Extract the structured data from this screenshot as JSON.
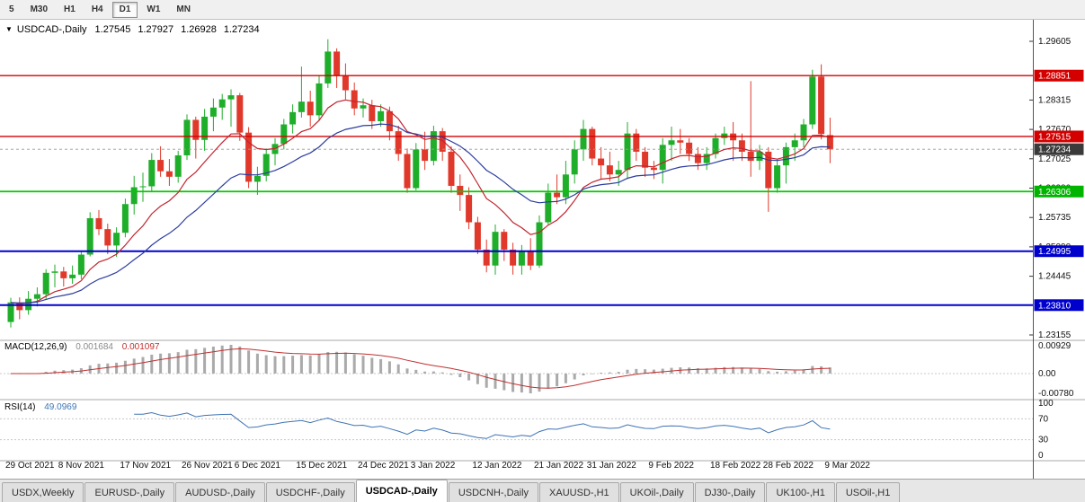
{
  "toolbar": {
    "timeframes": [
      {
        "label": "5",
        "active": false
      },
      {
        "label": "M30",
        "active": false
      },
      {
        "label": "H1",
        "active": false
      },
      {
        "label": "H4",
        "active": false
      },
      {
        "label": "D1",
        "active": true
      },
      {
        "label": "W1",
        "active": false
      },
      {
        "label": "MN",
        "active": false
      }
    ]
  },
  "chart_header": {
    "dropdown_icon": "▼",
    "symbol": "USDCAD-,Daily",
    "open": "1.27545",
    "high": "1.27927",
    "low": "1.26928",
    "close": "1.27234"
  },
  "price_axis": {
    "tick_labels": [
      "1.29605",
      "1.28315",
      "1.27670",
      "1.27025",
      "1.26380",
      "1.25735",
      "1.25090",
      "1.24445",
      "1.23155"
    ],
    "tick_values": [
      1.29605,
      1.28315,
      1.2767,
      1.27025,
      1.2638,
      1.25735,
      1.2509,
      1.24445,
      1.23155
    ],
    "badges": [
      {
        "label": "1.28851",
        "value": 1.28851,
        "color": "#d40000"
      },
      {
        "label": "1.27515",
        "value": 1.27515,
        "color": "#d40000"
      },
      {
        "label": "1.27234",
        "value": 1.27234,
        "color": "#3a3a3a"
      },
      {
        "label": "1.26306",
        "value": 1.26306,
        "color": "#00b400"
      },
      {
        "label": "1.24995",
        "value": 1.24995,
        "color": "#0000cd"
      },
      {
        "label": "1.23810",
        "value": 1.2381,
        "color": "#0000cd"
      }
    ]
  },
  "macd_panel": {
    "label": "MACD(12,26,9)",
    "value_main": "0.001684",
    "value_signal": "0.001097",
    "axis_labels": [
      "0.00929",
      "0.00",
      "-0.00780"
    ],
    "axis_values": [
      0.00929,
      0,
      -0.0078
    ]
  },
  "rsi_panel": {
    "label": "RSI(14)",
    "value": "49.0969",
    "axis_labels": [
      "100",
      "70",
      "30",
      "0"
    ],
    "axis_values": [
      100,
      70,
      30,
      0
    ],
    "guide_levels": [
      70,
      30
    ]
  },
  "x_axis_labels": [
    {
      "text": "29 Oct 2021",
      "i": 0
    },
    {
      "text": "8 Nov 2021",
      "i": 6
    },
    {
      "text": "17 Nov 2021",
      "i": 13
    },
    {
      "text": "26 Nov 2021",
      "i": 20
    },
    {
      "text": "6 Dec 2021",
      "i": 26
    },
    {
      "text": "15 Dec 2021",
      "i": 33
    },
    {
      "text": "24 Dec 2021",
      "i": 40
    },
    {
      "text": "3 Jan 2022",
      "i": 46
    },
    {
      "text": "12 Jan 2022",
      "i": 53
    },
    {
      "text": "21 Jan 2022",
      "i": 60
    },
    {
      "text": "31 Jan 2022",
      "i": 66
    },
    {
      "text": "9 Feb 2022",
      "i": 73
    },
    {
      "text": "18 Feb 2022",
      "i": 80
    },
    {
      "text": "28 Feb 2022",
      "i": 86
    },
    {
      "text": "9 Mar 2022",
      "i": 93
    }
  ],
  "tabs": [
    {
      "label": "USDX,Weekly",
      "active": false
    },
    {
      "label": "EURUSD-,Daily",
      "active": false
    },
    {
      "label": "AUDUSD-,Daily",
      "active": false
    },
    {
      "label": "USDCHF-,Daily",
      "active": false
    },
    {
      "label": "USDCAD-,Daily",
      "active": true
    },
    {
      "label": "USDCNH-,Daily",
      "active": false
    },
    {
      "label": "XAUUSD-,H1",
      "active": false
    },
    {
      "label": "UKOil-,Daily",
      "active": false
    },
    {
      "label": "DJ30-,Daily",
      "active": false
    },
    {
      "label": "UK100-,H1",
      "active": false
    },
    {
      "label": "USOil-,H1",
      "active": false
    }
  ],
  "chart_data": {
    "type": "candlestick",
    "symbol": "USDCAD-",
    "timeframe": "Daily",
    "title": "USDCAD-,Daily",
    "current_price": 1.27234,
    "price_axis_range": [
      1.23155,
      1.29605
    ],
    "levels": [
      {
        "value": 1.28851,
        "color": "#d40000",
        "width": 1.4
      },
      {
        "value": 1.27515,
        "color": "#d40000",
        "width": 1.4
      },
      {
        "value": 1.26306,
        "color": "#00cc00",
        "width": 1.8
      },
      {
        "value": 1.24995,
        "color": "#0000cd",
        "width": 2
      },
      {
        "value": 1.2381,
        "color": "#0000cd",
        "width": 2
      }
    ],
    "overlays": [
      {
        "type": "ema",
        "period": 10,
        "color": "#c2242e"
      },
      {
        "type": "ema",
        "period": 22,
        "color": "#2c3d9e"
      }
    ],
    "indicators": [
      {
        "name": "MACD",
        "params": [
          12,
          26,
          9
        ],
        "main": 0.001684,
        "signal": 0.001097
      },
      {
        "name": "RSI",
        "params": [
          14
        ],
        "value": 49.0969
      }
    ],
    "colors": {
      "up": "#1fae2a",
      "down": "#e0392b",
      "macd_histogram": "#aaaaaa",
      "macd_signal": "#c03030",
      "rsi_line": "#3e74b4"
    },
    "candles": [
      [
        1.2344,
        1.2397,
        1.2332,
        1.2387
      ],
      [
        1.2387,
        1.2398,
        1.235,
        1.237
      ],
      [
        1.237,
        1.2412,
        1.236,
        1.2395
      ],
      [
        1.2395,
        1.242,
        1.2378,
        1.2405
      ],
      [
        1.2405,
        1.246,
        1.2395,
        1.2452
      ],
      [
        1.2452,
        1.247,
        1.242,
        1.2455
      ],
      [
        1.2455,
        1.2465,
        1.2422,
        1.244
      ],
      [
        1.244,
        1.2468,
        1.2428,
        1.2448
      ],
      [
        1.2448,
        1.25,
        1.2438,
        1.2492
      ],
      [
        1.2492,
        1.2585,
        1.2488,
        1.2572
      ],
      [
        1.2572,
        1.259,
        1.2535,
        1.2548
      ],
      [
        1.2548,
        1.256,
        1.2493,
        1.2512
      ],
      [
        1.2512,
        1.2552,
        1.2487,
        1.254
      ],
      [
        1.254,
        1.2615,
        1.253,
        1.2603
      ],
      [
        1.2603,
        1.2665,
        1.258,
        1.264
      ],
      [
        1.264,
        1.2672,
        1.2608,
        1.2642
      ],
      [
        1.2642,
        1.2715,
        1.2632,
        1.27
      ],
      [
        1.27,
        1.273,
        1.2663,
        1.2675
      ],
      [
        1.2675,
        1.2702,
        1.2643,
        1.2663
      ],
      [
        1.2663,
        1.272,
        1.265,
        1.271
      ],
      [
        1.271,
        1.28,
        1.27,
        1.2788
      ],
      [
        1.2788,
        1.2795,
        1.2703,
        1.2744
      ],
      [
        1.2744,
        1.2812,
        1.272,
        1.2795
      ],
      [
        1.2795,
        1.2835,
        1.2763,
        1.2815
      ],
      [
        1.2815,
        1.2845,
        1.2788,
        1.2833
      ],
      [
        1.2833,
        1.2855,
        1.2773,
        1.2842
      ],
      [
        1.2842,
        1.2847,
        1.2742,
        1.276
      ],
      [
        1.276,
        1.2772,
        1.2638,
        1.2652
      ],
      [
        1.2652,
        1.2685,
        1.2623,
        1.2665
      ],
      [
        1.2665,
        1.2725,
        1.2653,
        1.2713
      ],
      [
        1.2713,
        1.2748,
        1.2688,
        1.2735
      ],
      [
        1.2735,
        1.279,
        1.2723,
        1.2778
      ],
      [
        1.2778,
        1.2822,
        1.2758,
        1.2805
      ],
      [
        1.2805,
        1.2905,
        1.2793,
        1.2828
      ],
      [
        1.2828,
        1.2852,
        1.2773,
        1.2798
      ],
      [
        1.2798,
        1.2885,
        1.2788,
        1.2868
      ],
      [
        1.2868,
        1.2965,
        1.2858,
        1.2938
      ],
      [
        1.2938,
        1.2945,
        1.2858,
        1.2885
      ],
      [
        1.2885,
        1.2912,
        1.2833,
        1.2853
      ],
      [
        1.2853,
        1.287,
        1.2798,
        1.2813
      ],
      [
        1.2813,
        1.2835,
        1.2793,
        1.282
      ],
      [
        1.282,
        1.2832,
        1.2768,
        1.2785
      ],
      [
        1.2785,
        1.2822,
        1.2773,
        1.2807
      ],
      [
        1.2807,
        1.2817,
        1.2743,
        1.2763
      ],
      [
        1.2763,
        1.2775,
        1.2698,
        1.2713
      ],
      [
        1.2713,
        1.2725,
        1.2628,
        1.2638
      ],
      [
        1.2638,
        1.2737,
        1.2633,
        1.2723
      ],
      [
        1.2723,
        1.2762,
        1.2678,
        1.2698
      ],
      [
        1.2698,
        1.2775,
        1.2688,
        1.2763
      ],
      [
        1.2763,
        1.277,
        1.2698,
        1.2718
      ],
      [
        1.2718,
        1.273,
        1.2628,
        1.2643
      ],
      [
        1.2643,
        1.2668,
        1.2588,
        1.2623
      ],
      [
        1.2623,
        1.264,
        1.2548,
        1.2563
      ],
      [
        1.2563,
        1.2575,
        1.2493,
        1.2503
      ],
      [
        1.2503,
        1.2525,
        1.2453,
        1.2468
      ],
      [
        1.2468,
        1.2558,
        1.2448,
        1.2542
      ],
      [
        1.2542,
        1.2548,
        1.2478,
        1.2503
      ],
      [
        1.2503,
        1.2518,
        1.2448,
        1.2468
      ],
      [
        1.2468,
        1.2513,
        1.2448,
        1.2498
      ],
      [
        1.2498,
        1.2528,
        1.2458,
        1.2468
      ],
      [
        1.2468,
        1.2578,
        1.2463,
        1.2563
      ],
      [
        1.2563,
        1.2648,
        1.2558,
        1.2628
      ],
      [
        1.2628,
        1.2668,
        1.2603,
        1.2618
      ],
      [
        1.2618,
        1.2698,
        1.2603,
        1.2668
      ],
      [
        1.2668,
        1.2743,
        1.2648,
        1.2723
      ],
      [
        1.2723,
        1.2788,
        1.2698,
        1.2768
      ],
      [
        1.2768,
        1.2773,
        1.2688,
        1.2703
      ],
      [
        1.2703,
        1.2728,
        1.2658,
        1.2688
      ],
      [
        1.2688,
        1.2718,
        1.2653,
        1.2668
      ],
      [
        1.2668,
        1.2698,
        1.2643,
        1.2678
      ],
      [
        1.2678,
        1.2783,
        1.2658,
        1.2758
      ],
      [
        1.2758,
        1.2768,
        1.2698,
        1.2718
      ],
      [
        1.2718,
        1.2728,
        1.2663,
        1.2683
      ],
      [
        1.2683,
        1.2698,
        1.2658,
        1.2678
      ],
      [
        1.2678,
        1.2748,
        1.2648,
        1.2733
      ],
      [
        1.2733,
        1.2773,
        1.2698,
        1.2743
      ],
      [
        1.2743,
        1.2768,
        1.2713,
        1.2738
      ],
      [
        1.2738,
        1.2748,
        1.2698,
        1.2713
      ],
      [
        1.2713,
        1.2728,
        1.2678,
        1.2693
      ],
      [
        1.2693,
        1.2728,
        1.2678,
        1.2713
      ],
      [
        1.2713,
        1.2758,
        1.2703,
        1.2748
      ],
      [
        1.2748,
        1.2773,
        1.2733,
        1.2758
      ],
      [
        1.2758,
        1.2783,
        1.2698,
        1.2743
      ],
      [
        1.2743,
        1.2758,
        1.2698,
        1.2718
      ],
      [
        1.2718,
        1.2873,
        1.2663,
        1.2698
      ],
      [
        1.2698,
        1.2733,
        1.2678,
        1.2718
      ],
      [
        1.2718,
        1.2728,
        1.2586,
        1.2638
      ],
      [
        1.2638,
        1.2702,
        1.2628,
        1.2688
      ],
      [
        1.2688,
        1.2738,
        1.2648,
        1.2728
      ],
      [
        1.2728,
        1.2758,
        1.2698,
        1.2743
      ],
      [
        1.2743,
        1.279,
        1.2728,
        1.2778
      ],
      [
        1.2778,
        1.2898,
        1.2768,
        1.2883
      ],
      [
        1.2883,
        1.291,
        1.2745,
        1.2757
      ],
      [
        1.27545,
        1.27927,
        1.26928,
        1.27234
      ]
    ]
  }
}
